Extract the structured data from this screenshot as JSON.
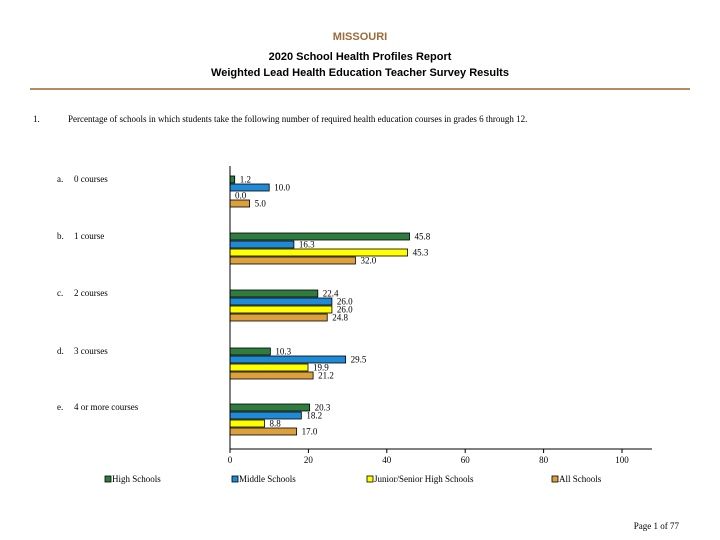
{
  "header": {
    "state": "MISSOURI",
    "title": "2020 School Health Profiles Report",
    "subtitle": "Weighted Lead Health Education Teacher Survey Results"
  },
  "question": {
    "number": "1.",
    "text": "Percentage of schools in which students take the following number of required health education courses in grades 6 through 12."
  },
  "footer": {
    "page": "Page 1 of 77"
  },
  "chart_data": {
    "type": "bar",
    "orientation": "horizontal",
    "categories": [
      {
        "letter": "a.",
        "label": "0 courses"
      },
      {
        "letter": "b.",
        "label": "1 course"
      },
      {
        "letter": "c.",
        "label": "2 courses"
      },
      {
        "letter": "d.",
        "label": "3 courses"
      },
      {
        "letter": "e.",
        "label": "4 or more courses"
      }
    ],
    "series": [
      {
        "name": "High Schools",
        "color": "#2e7d3e",
        "values": [
          1.2,
          45.8,
          22.4,
          10.3,
          20.3
        ]
      },
      {
        "name": "Middle Schools",
        "color": "#1f8ad6",
        "values": [
          10.0,
          16.3,
          26.0,
          29.5,
          18.2
        ]
      },
      {
        "name": "Junior/Senior High Schools",
        "color": "#ffff00",
        "values": [
          0.0,
          45.3,
          26.0,
          19.9,
          8.8
        ]
      },
      {
        "name": "All Schools",
        "color": "#dca03c",
        "values": [
          5.0,
          32.0,
          24.8,
          21.2,
          17.0
        ]
      }
    ],
    "xlim": [
      0,
      100
    ],
    "xticks": [
      0,
      20,
      40,
      60,
      80,
      100
    ],
    "legend_position": "bottom",
    "grid": false
  }
}
